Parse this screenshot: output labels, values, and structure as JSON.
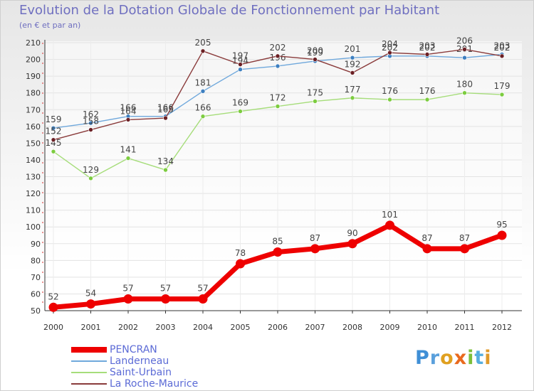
{
  "chart_data": {
    "type": "line",
    "title": "Evolution de la Dotation Globale de Fonctionnement par Habitant",
    "subtitle": "(en € et par an)",
    "xlabel": "",
    "ylabel": "",
    "ylim": [
      50,
      210
    ],
    "yticks": [
      50,
      60,
      70,
      80,
      90,
      100,
      110,
      120,
      130,
      140,
      150,
      160,
      170,
      180,
      190,
      200,
      210
    ],
    "categories": [
      "2000",
      "2001",
      "2002",
      "2003",
      "2004",
      "2005",
      "2006",
      "2007",
      "2008",
      "2009",
      "2010",
      "2011",
      "2012"
    ],
    "series": [
      {
        "name": "Landerneau",
        "color": "#6fa8dc",
        "markerColor": "#3d7fc0",
        "values": [
          159,
          162,
          166,
          166,
          181,
          194,
          196,
          199,
          201,
          202,
          202,
          201,
          203
        ]
      },
      {
        "name": "Saint-Urbain",
        "color": "#a6dd7a",
        "markerColor": "#7ccc3f",
        "values": [
          145,
          129,
          141,
          134,
          166,
          169,
          172,
          175,
          177,
          176,
          176,
          180,
          179
        ]
      },
      {
        "name": "La Roche-Maurice",
        "color": "#8a3b3b",
        "markerColor": "#6b1f24",
        "values": [
          152,
          158,
          164,
          165,
          205,
          197,
          202,
          200,
          192,
          204,
          203,
          206,
          202
        ]
      },
      {
        "name": "PENCRAN",
        "color": "#ee0000",
        "markerColor": "#ee0000",
        "values": [
          52,
          54,
          57,
          57,
          57,
          78,
          85,
          87,
          90,
          101,
          87,
          87,
          95
        ]
      }
    ],
    "legend_position": "bottom-left"
  },
  "legend": [
    {
      "name": "PENCRAN",
      "color": "#ee0000"
    },
    {
      "name": "Landerneau",
      "color": "#6fa8dc"
    },
    {
      "name": "Saint-Urbain",
      "color": "#a6dd7a"
    },
    {
      "name": "La Roche-Maurice",
      "color": "#8a3b3b"
    }
  ],
  "logo": [
    "P",
    "r",
    "o",
    "x",
    "i",
    "t",
    "i"
  ]
}
